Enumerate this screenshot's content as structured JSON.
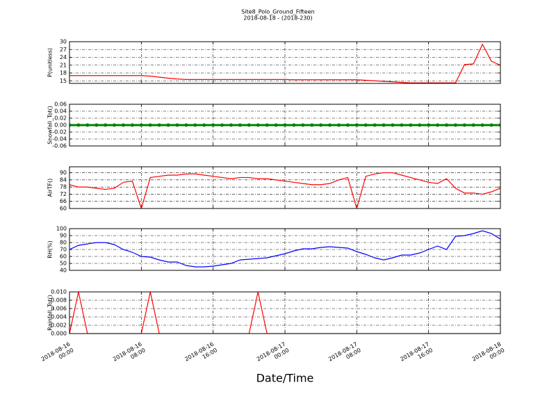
{
  "title": "Site8_Polo_Ground_Fifteen",
  "subtitle": "2018-08-18 - (2018-230)",
  "xlabel": "Date/Time",
  "chart_data": [
    {
      "type": "line",
      "ylabel": "P(unitless)",
      "ylim": [
        14,
        30
      ],
      "yticks": [
        15,
        18,
        21,
        24,
        27,
        30
      ],
      "grid": true,
      "xlim": [
        "2018-08-16 00:00",
        "2018-08-18 00:00"
      ],
      "xticks": [
        "2018-08-16 00:00",
        "2018-08-16 08:00",
        "2018-08-16 16:00",
        "2018-08-17 00:00",
        "2018-08-17 08:00",
        "2018-08-17 16:00",
        "2018-08-18 00:00"
      ],
      "x": [
        "2018-08-16 00:00",
        "2018-08-16 01:00",
        "2018-08-16 02:00",
        "2018-08-16 03:00",
        "2018-08-16 04:00",
        "2018-08-16 05:00",
        "2018-08-16 06:00",
        "2018-08-16 07:00",
        "2018-08-16 08:00",
        "2018-08-16 09:00",
        "2018-08-16 10:00",
        "2018-08-16 11:00",
        "2018-08-16 12:00",
        "2018-08-16 13:00",
        "2018-08-16 14:00",
        "2018-08-16 15:00",
        "2018-08-16 16:00",
        "2018-08-16 17:00",
        "2018-08-16 18:00",
        "2018-08-16 19:00",
        "2018-08-16 20:00",
        "2018-08-16 21:00",
        "2018-08-16 22:00",
        "2018-08-16 23:00",
        "2018-08-17 00:00",
        "2018-08-17 01:00",
        "2018-08-17 02:00",
        "2018-08-17 03:00",
        "2018-08-17 04:00",
        "2018-08-17 05:00",
        "2018-08-17 06:00",
        "2018-08-17 07:00",
        "2018-08-17 08:00",
        "2018-08-17 09:00",
        "2018-08-17 10:00",
        "2018-08-17 11:00",
        "2018-08-17 12:00",
        "2018-08-17 13:00",
        "2018-08-17 14:00",
        "2018-08-17 15:00",
        "2018-08-17 16:00",
        "2018-08-17 17:00",
        "2018-08-17 18:00",
        "2018-08-17 19:00",
        "2018-08-17 20:00",
        "2018-08-17 21:00",
        "2018-08-17 22:00",
        "2018-08-17 23:00",
        "2018-08-18 00:00"
      ],
      "series": [
        {
          "color": "#ff0000",
          "values": [
            17,
            17,
            17,
            17,
            17,
            17,
            17,
            17,
            17,
            16.8,
            16.4,
            16.0,
            15.7,
            15.5,
            15.5,
            15.5,
            15.5,
            15.5,
            15.5,
            15.5,
            15.5,
            15.5,
            15.5,
            15.5,
            15.5,
            15.4,
            15.4,
            15.4,
            15.4,
            15.4,
            15.4,
            15.4,
            15.4,
            15.2,
            15.0,
            14.8,
            14.6,
            14.4,
            14.2,
            14.2,
            14.2,
            14.2,
            14.2,
            14.2,
            21.2,
            21.5,
            29,
            22.5,
            21
          ]
        }
      ]
    },
    {
      "type": "line",
      "ylabel": "Snowfall_Tot()",
      "ylim": [
        -0.06,
        0.06
      ],
      "yticks": [
        -0.06,
        -0.04,
        -0.02,
        {
          "value": 0,
          "label": "0.00"
        },
        0.02,
        0.04,
        0.06
      ],
      "grid": true,
      "markers": true,
      "xlim": [
        "2018-08-16 00:00",
        "2018-08-18 00:00"
      ],
      "xticks": [
        "2018-08-16 00:00",
        "2018-08-16 08:00",
        "2018-08-16 16:00",
        "2018-08-17 00:00",
        "2018-08-17 08:00",
        "2018-08-17 16:00",
        "2018-08-18 00:00"
      ],
      "x": [
        "2018-08-16 00:00",
        "2018-08-16 01:00",
        "2018-08-16 02:00",
        "2018-08-16 03:00",
        "2018-08-16 04:00",
        "2018-08-16 05:00",
        "2018-08-16 06:00",
        "2018-08-16 07:00",
        "2018-08-16 08:00",
        "2018-08-16 09:00",
        "2018-08-16 10:00",
        "2018-08-16 11:00",
        "2018-08-16 12:00",
        "2018-08-16 13:00",
        "2018-08-16 14:00",
        "2018-08-16 15:00",
        "2018-08-16 16:00",
        "2018-08-16 17:00",
        "2018-08-16 18:00",
        "2018-08-16 19:00",
        "2018-08-16 20:00",
        "2018-08-16 21:00",
        "2018-08-16 22:00",
        "2018-08-16 23:00",
        "2018-08-17 00:00",
        "2018-08-17 01:00",
        "2018-08-17 02:00",
        "2018-08-17 03:00",
        "2018-08-17 04:00",
        "2018-08-17 05:00",
        "2018-08-17 06:00",
        "2018-08-17 07:00",
        "2018-08-17 08:00",
        "2018-08-17 09:00",
        "2018-08-17 10:00",
        "2018-08-17 11:00",
        "2018-08-17 12:00",
        "2018-08-17 13:00",
        "2018-08-17 14:00",
        "2018-08-17 15:00",
        "2018-08-17 16:00",
        "2018-08-17 17:00",
        "2018-08-17 18:00",
        "2018-08-17 19:00",
        "2018-08-17 20:00",
        "2018-08-17 21:00",
        "2018-08-17 22:00",
        "2018-08-17 23:00",
        "2018-08-18 00:00"
      ],
      "series": [
        {
          "color": "#008000",
          "values": [
            0,
            0,
            0,
            0,
            0,
            0,
            0,
            0,
            0,
            0,
            0,
            0,
            0,
            0,
            0,
            0,
            0,
            0,
            0,
            0,
            0,
            0,
            0,
            0,
            0,
            0,
            0,
            0,
            0,
            0,
            0,
            0,
            0,
            0,
            0,
            0,
            0,
            0,
            0,
            0,
            0,
            0,
            0,
            0,
            0,
            0,
            0,
            0,
            0
          ]
        }
      ]
    },
    {
      "type": "line",
      "ylabel": "AirTF()",
      "ylim": [
        60,
        95
      ],
      "yticks": [
        60,
        66,
        72,
        78,
        84,
        90
      ],
      "grid": true,
      "xlim": [
        "2018-08-16 00:00",
        "2018-08-18 00:00"
      ],
      "xticks": [
        "2018-08-16 00:00",
        "2018-08-16 08:00",
        "2018-08-16 16:00",
        "2018-08-17 00:00",
        "2018-08-17 08:00",
        "2018-08-17 16:00",
        "2018-08-18 00:00"
      ],
      "x": [
        "2018-08-16 00:00",
        "2018-08-16 01:00",
        "2018-08-16 02:00",
        "2018-08-16 03:00",
        "2018-08-16 04:00",
        "2018-08-16 05:00",
        "2018-08-16 06:00",
        "2018-08-16 07:00",
        "2018-08-16 08:00",
        "2018-08-16 09:00",
        "2018-08-16 10:00",
        "2018-08-16 11:00",
        "2018-08-16 12:00",
        "2018-08-16 13:00",
        "2018-08-16 14:00",
        "2018-08-16 15:00",
        "2018-08-16 16:00",
        "2018-08-16 17:00",
        "2018-08-16 18:00",
        "2018-08-16 19:00",
        "2018-08-16 20:00",
        "2018-08-16 21:00",
        "2018-08-16 22:00",
        "2018-08-16 23:00",
        "2018-08-17 00:00",
        "2018-08-17 01:00",
        "2018-08-17 02:00",
        "2018-08-17 03:00",
        "2018-08-17 04:00",
        "2018-08-17 05:00",
        "2018-08-17 06:00",
        "2018-08-17 07:00",
        "2018-08-17 08:00",
        "2018-08-17 09:00",
        "2018-08-17 10:00",
        "2018-08-17 11:00",
        "2018-08-17 12:00",
        "2018-08-17 13:00",
        "2018-08-17 14:00",
        "2018-08-17 15:00",
        "2018-08-17 16:00",
        "2018-08-17 17:00",
        "2018-08-17 18:00",
        "2018-08-17 19:00",
        "2018-08-17 20:00",
        "2018-08-17 21:00",
        "2018-08-17 22:00",
        "2018-08-17 23:00",
        "2018-08-18 00:00"
      ],
      "series": [
        {
          "color": "#ff0000",
          "values": [
            80,
            78,
            78,
            77,
            76,
            77,
            82,
            83,
            60,
            86,
            87,
            88,
            88,
            89,
            89,
            88,
            87,
            86,
            85,
            86,
            86,
            85,
            85,
            84,
            83,
            82,
            81,
            80,
            80,
            81,
            84,
            86,
            60,
            87,
            89,
            90,
            90,
            88,
            86,
            84,
            82,
            81,
            85,
            77,
            73,
            73,
            72,
            74,
            77
          ]
        }
      ]
    },
    {
      "type": "line",
      "ylabel": "RH(%)",
      "ylim": [
        40,
        100
      ],
      "yticks": [
        40,
        50,
        60,
        70,
        80,
        90,
        100
      ],
      "grid": true,
      "xlim": [
        "2018-08-16 00:00",
        "2018-08-18 00:00"
      ],
      "xticks": [
        "2018-08-16 00:00",
        "2018-08-16 08:00",
        "2018-08-16 16:00",
        "2018-08-17 00:00",
        "2018-08-17 08:00",
        "2018-08-17 16:00",
        "2018-08-18 00:00"
      ],
      "x": [
        "2018-08-16 00:00",
        "2018-08-16 01:00",
        "2018-08-16 02:00",
        "2018-08-16 03:00",
        "2018-08-16 04:00",
        "2018-08-16 05:00",
        "2018-08-16 06:00",
        "2018-08-16 07:00",
        "2018-08-16 08:00",
        "2018-08-16 09:00",
        "2018-08-16 10:00",
        "2018-08-16 11:00",
        "2018-08-16 12:00",
        "2018-08-16 13:00",
        "2018-08-16 14:00",
        "2018-08-16 15:00",
        "2018-08-16 16:00",
        "2018-08-16 17:00",
        "2018-08-16 18:00",
        "2018-08-16 19:00",
        "2018-08-16 20:00",
        "2018-08-16 21:00",
        "2018-08-16 22:00",
        "2018-08-16 23:00",
        "2018-08-17 00:00",
        "2018-08-17 01:00",
        "2018-08-17 02:00",
        "2018-08-17 03:00",
        "2018-08-17 04:00",
        "2018-08-17 05:00",
        "2018-08-17 06:00",
        "2018-08-17 07:00",
        "2018-08-17 08:00",
        "2018-08-17 09:00",
        "2018-08-17 10:00",
        "2018-08-17 11:00",
        "2018-08-17 12:00",
        "2018-08-17 13:00",
        "2018-08-17 14:00",
        "2018-08-17 15:00",
        "2018-08-17 16:00",
        "2018-08-17 17:00",
        "2018-08-17 18:00",
        "2018-08-17 19:00",
        "2018-08-17 20:00",
        "2018-08-17 21:00",
        "2018-08-17 22:00",
        "2018-08-17 23:00",
        "2018-08-18 00:00"
      ],
      "series": [
        {
          "color": "#0000ff",
          "values": [
            70,
            76,
            78,
            80,
            80,
            77,
            70,
            66,
            60,
            59,
            55,
            52,
            52,
            47,
            45,
            45,
            46,
            48,
            50,
            55,
            56,
            57,
            58,
            61,
            64,
            68,
            71,
            71,
            73,
            74,
            73,
            72,
            67,
            63,
            58,
            55,
            58,
            62,
            62,
            65,
            70,
            75,
            70,
            89,
            90,
            93,
            97,
            93,
            85
          ]
        }
      ]
    },
    {
      "type": "line",
      "ylabel": "Rainfall_Tot()",
      "ylim": [
        0,
        0.01
      ],
      "yticks": [
        {
          "value": 0,
          "label": "0.000"
        },
        0.002,
        0.004,
        0.006,
        0.008,
        {
          "value": 0.01,
          "label": "0.010"
        }
      ],
      "grid": true,
      "xlim": [
        "2018-08-16 00:00",
        "2018-08-18 00:00"
      ],
      "xticks": [
        {
          "value": "2018-08-16 00:00",
          "label": "2018-08-16 00:00"
        },
        {
          "value": "2018-08-16 08:00",
          "label": "2018-08-16 08:00"
        },
        {
          "value": "2018-08-16 16:00",
          "label": "2018-08-16 16:00"
        },
        {
          "value": "2018-08-17 00:00",
          "label": "2018-08-17 00:00"
        },
        {
          "value": "2018-08-17 08:00",
          "label": "2018-08-17 08:00"
        },
        {
          "value": "2018-08-17 16:00",
          "label": "2018-08-17 16:00"
        },
        {
          "value": "2018-08-18 00:00",
          "label": "2018-08-18 00:00"
        }
      ],
      "x": [
        "2018-08-16 00:00",
        "2018-08-16 01:00",
        "2018-08-16 02:00",
        "2018-08-16 03:00",
        "2018-08-16 04:00",
        "2018-08-16 05:00",
        "2018-08-16 06:00",
        "2018-08-16 07:00",
        "2018-08-16 08:00",
        "2018-08-16 09:00",
        "2018-08-16 10:00",
        "2018-08-16 11:00",
        "2018-08-16 12:00",
        "2018-08-16 13:00",
        "2018-08-16 14:00",
        "2018-08-16 15:00",
        "2018-08-16 16:00",
        "2018-08-16 17:00",
        "2018-08-16 18:00",
        "2018-08-16 19:00",
        "2018-08-16 20:00",
        "2018-08-16 21:00",
        "2018-08-16 22:00",
        "2018-08-16 23:00",
        "2018-08-17 00:00",
        "2018-08-17 01:00",
        "2018-08-17 02:00",
        "2018-08-17 03:00",
        "2018-08-17 04:00",
        "2018-08-17 05:00",
        "2018-08-17 06:00",
        "2018-08-17 07:00",
        "2018-08-17 08:00",
        "2018-08-17 09:00",
        "2018-08-17 10:00",
        "2018-08-17 11:00",
        "2018-08-17 12:00",
        "2018-08-17 13:00",
        "2018-08-17 14:00",
        "2018-08-17 15:00",
        "2018-08-17 16:00",
        "2018-08-17 17:00",
        "2018-08-17 18:00",
        "2018-08-17 19:00",
        "2018-08-17 20:00",
        "2018-08-17 21:00",
        "2018-08-17 22:00",
        "2018-08-17 23:00",
        "2018-08-18 00:00"
      ],
      "series": [
        {
          "color": "#ff0000",
          "values": [
            0,
            0.01,
            0,
            0,
            0,
            0,
            0,
            0,
            0,
            0.01,
            0,
            0,
            0,
            0,
            0,
            0,
            0,
            0,
            0,
            0,
            0,
            0.01,
            0,
            0,
            0,
            0,
            0,
            0,
            0,
            0,
            0,
            0,
            0,
            0,
            0,
            0,
            0,
            0,
            0,
            0,
            0,
            0,
            0,
            0,
            0,
            0,
            0,
            0,
            0
          ]
        }
      ]
    }
  ]
}
